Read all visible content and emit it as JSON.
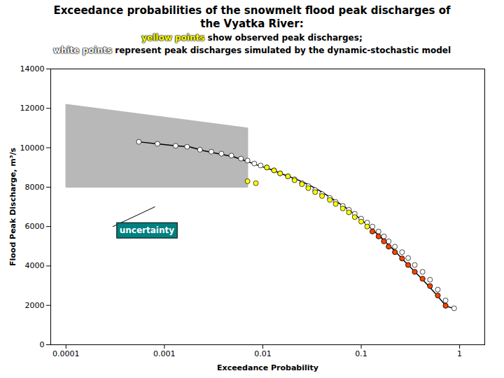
{
  "chart_data": {
    "type": "scatter",
    "title": [
      "Exceedance probabilities of the snowmelt flood peak discharges of",
      "the Vyatka River:"
    ],
    "subtitle": [
      [
        {
          "text": "yellow points",
          "color": "yellow"
        },
        {
          "text": " show observed peak discharges;"
        }
      ],
      [
        {
          "text": "white points",
          "color": "white"
        },
        {
          "text": " represent peak discharges simulated by the dynamic-stochastic model"
        }
      ]
    ],
    "xlabel": "Exceedance Probability",
    "ylabel": "Flood Peak Discharge, m³/s",
    "log": "x",
    "grid": false,
    "xlim": [
      7e-05,
      1.8
    ],
    "ylim": [
      0,
      14000
    ],
    "xticks": [
      0.0001,
      0.001,
      0.01,
      0.1,
      1
    ],
    "yticks": [
      0,
      2000,
      4000,
      6000,
      8000,
      10000,
      12000,
      14000
    ],
    "series": [
      {
        "type": "area",
        "color": "#b8b8b8",
        "x": [
          0.0001,
          0.0001,
          0.007,
          0.007
        ],
        "values": [
          8000,
          12200,
          11000,
          8000
        ]
      },
      {
        "type": "line",
        "color": "#000000",
        "line_style": "solid",
        "x": [
          0.00055,
          0.00085,
          0.0013,
          0.0018,
          0.0025,
          0.0035,
          0.005,
          0.007,
          0.009,
          0.012,
          0.016,
          0.022,
          0.03,
          0.04,
          0.055,
          0.075,
          0.1,
          0.13,
          0.17,
          0.22,
          0.28,
          0.36,
          0.46,
          0.58,
          0.73,
          0.88
        ],
        "values": [
          10300,
          10200,
          10100,
          10050,
          9850,
          9700,
          9550,
          9300,
          9100,
          8900,
          8650,
          8400,
          8100,
          7750,
          7300,
          6850,
          6350,
          5850,
          5300,
          4750,
          4200,
          3650,
          3100,
          2550,
          1950,
          1850
        ]
      },
      {
        "type": "scatter",
        "color": "#ffffff",
        "marker": "circle",
        "x": [
          0.00055,
          0.00085,
          0.0013,
          0.0017,
          0.0023,
          0.003,
          0.0038,
          0.0048,
          0.006,
          0.007,
          0.0082,
          0.0095,
          0.011,
          0.013,
          0.015,
          0.018,
          0.021,
          0.025,
          0.029,
          0.034,
          0.04,
          0.048,
          0.055,
          0.065,
          0.075,
          0.086,
          0.1,
          0.115,
          0.13,
          0.15,
          0.17,
          0.19,
          0.22,
          0.26,
          0.3,
          0.35,
          0.42,
          0.5,
          0.6,
          0.72,
          0.88
        ],
        "values": [
          10300,
          10200,
          10100,
          10050,
          9900,
          9800,
          9700,
          9600,
          9450,
          9350,
          9200,
          9100,
          9000,
          8850,
          8700,
          8550,
          8400,
          8200,
          8050,
          7850,
          7650,
          7450,
          7250,
          7050,
          6850,
          6650,
          6400,
          6200,
          6000,
          5750,
          5500,
          5250,
          4980,
          4700,
          4400,
          4050,
          3700,
          3300,
          2800,
          2250,
          1850
        ]
      },
      {
        "type": "scatter",
        "color": "yellow",
        "marker": "circle",
        "x": [
          0.007,
          0.0085,
          0.011,
          0.013,
          0.015,
          0.018,
          0.021,
          0.025,
          0.029,
          0.034,
          0.04,
          0.048,
          0.055,
          0.065,
          0.075,
          0.086,
          0.1,
          0.115,
          0.13,
          0.15,
          0.17,
          0.19,
          0.22,
          0.26,
          0.3,
          0.35,
          0.42,
          0.5,
          0.6,
          0.72
        ],
        "values": [
          8300,
          8200,
          9000,
          8850,
          8700,
          8550,
          8350,
          8150,
          7950,
          7750,
          7550,
          7350,
          7150,
          6920,
          6720,
          6480,
          6250,
          6000,
          5750,
          5500,
          5250,
          4980,
          4700,
          4380,
          4050,
          3700,
          3350,
          2980,
          2500,
          1980
        ]
      },
      {
        "type": "scatter",
        "color": "#ff4400",
        "marker": "circle",
        "x": [
          0.13,
          0.15,
          0.17,
          0.19,
          0.22,
          0.26,
          0.3,
          0.35,
          0.42,
          0.5,
          0.6,
          0.72
        ],
        "values": [
          5750,
          5500,
          5250,
          4980,
          4700,
          4380,
          4050,
          3700,
          3350,
          2980,
          2500,
          1980
        ]
      }
    ],
    "annotations": [
      {
        "text": "uncertainty",
        "x": 0.00035,
        "y": 5800,
        "color": "#008080",
        "text_color": "#ffffff",
        "line": {
          "x": [
            0.0003,
            0.0008
          ],
          "y": [
            6000,
            7000
          ]
        }
      }
    ]
  }
}
